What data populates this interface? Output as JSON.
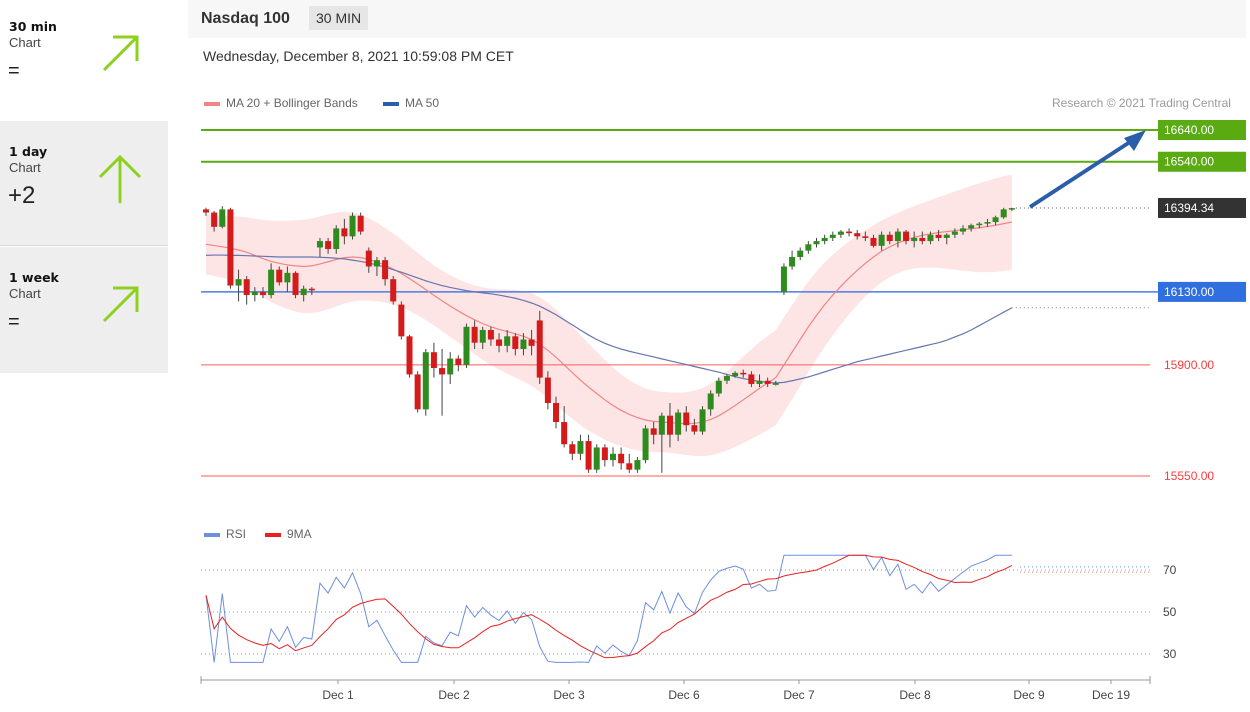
{
  "sidebar": {
    "items": [
      {
        "name": "30 min",
        "sub": "Chart",
        "score": "=",
        "arrow": "up-right-arrow-icon"
      },
      {
        "name": "1 day",
        "sub": "Chart",
        "score": "+2",
        "arrow": "up-arrow-icon"
      },
      {
        "name": "1 week",
        "sub": "Chart",
        "score": "=",
        "arrow": "up-right-arrow-icon"
      }
    ],
    "arrow_color": "#8dd11e"
  },
  "header": {
    "instrument": "Nasdaq 100",
    "timeframe": "30 MIN",
    "datetime": "Wednesday, December 8, 2021 10:59:08 PM CET",
    "credit": "Research © 2021 Trading Central"
  },
  "legend": {
    "ma20": "MA 20 + Bollinger Bands",
    "ma50": "MA 50",
    "rsi": "RSI",
    "rsi_ma": "9MA"
  },
  "levels": {
    "resistance": [
      "16640.00",
      "16540.00"
    ],
    "last": "16394.34",
    "pivot": "16130.00",
    "support": [
      "15900.00",
      "15550.00"
    ]
  },
  "rsi_ticks": [
    "70",
    "50",
    "30"
  ],
  "x_ticks": [
    "Dec 1",
    "Dec 2",
    "Dec 3",
    "Dec 6",
    "Dec 7",
    "Dec 8",
    "Dec 9",
    "Dec 19"
  ],
  "colors": {
    "bull": "#2e8b1e",
    "bear": "#d41a1a",
    "resistance": "#5aaa12",
    "support": "#ff5a5a",
    "pivot": "#4a7de0",
    "forecast": "#2a5ea8",
    "ma20": "#f08585",
    "ma50": "#6676b0",
    "band": "#fde0e0"
  },
  "chart_data": {
    "type": "candlestick",
    "x_unit": "30-minute bars",
    "candles": [
      [
        16390,
        16395,
        16370,
        16380
      ],
      [
        16380,
        16385,
        16320,
        16335
      ],
      [
        16335,
        16400,
        16330,
        16390
      ],
      [
        16390,
        16395,
        16140,
        16150
      ],
      [
        16150,
        16200,
        16100,
        16170
      ],
      [
        16170,
        16180,
        16090,
        16120
      ],
      [
        16120,
        16145,
        16100,
        16130
      ],
      [
        16130,
        16145,
        16110,
        16120
      ],
      [
        16120,
        16220,
        16110,
        16200
      ],
      [
        16200,
        16210,
        16150,
        16160
      ],
      [
        16160,
        16210,
        16130,
        16190
      ],
      [
        16190,
        16195,
        16110,
        16120
      ],
      [
        16120,
        16150,
        16100,
        16140
      ],
      [
        16140,
        16145,
        16120,
        16135
      ],
      [
        16270,
        16300,
        16240,
        16290
      ],
      [
        16290,
        16300,
        16250,
        16265
      ],
      [
        16265,
        16340,
        16250,
        16330
      ],
      [
        16330,
        16360,
        16280,
        16305
      ],
      [
        16305,
        16380,
        16295,
        16370
      ],
      [
        16370,
        16380,
        16310,
        16320
      ],
      [
        16260,
        16270,
        16190,
        16210
      ],
      [
        16210,
        16240,
        16180,
        16230
      ],
      [
        16230,
        16240,
        16150,
        16170
      ],
      [
        16170,
        16180,
        16090,
        16100
      ],
      [
        16090,
        16100,
        15980,
        15990
      ],
      [
        15990,
        15995,
        15860,
        15870
      ],
      [
        15870,
        15880,
        15750,
        15760
      ],
      [
        15760,
        15950,
        15740,
        15940
      ],
      [
        15940,
        15970,
        15860,
        15890
      ],
      [
        15890,
        15950,
        15740,
        15870
      ],
      [
        15870,
        15940,
        15840,
        15920
      ],
      [
        15920,
        15930,
        15880,
        15900
      ],
      [
        15900,
        16030,
        15890,
        16020
      ],
      [
        16020,
        16040,
        15950,
        15970
      ],
      [
        15970,
        16020,
        15950,
        16010
      ],
      [
        16010,
        16020,
        15960,
        15980
      ],
      [
        15980,
        16000,
        15940,
        15960
      ],
      [
        15960,
        16010,
        15940,
        15990
      ],
      [
        15990,
        16000,
        15930,
        15950
      ],
      [
        15950,
        16000,
        15930,
        15980
      ],
      [
        15980,
        16010,
        15930,
        15960
      ],
      [
        16040,
        16070,
        15840,
        15860
      ],
      [
        15860,
        15880,
        15760,
        15780
      ],
      [
        15780,
        15800,
        15700,
        15720
      ],
      [
        15720,
        15770,
        15640,
        15650
      ],
      [
        15650,
        15660,
        15600,
        15620
      ],
      [
        15620,
        15680,
        15600,
        15660
      ],
      [
        15660,
        15680,
        15560,
        15570
      ],
      [
        15570,
        15650,
        15560,
        15640
      ],
      [
        15640,
        15650,
        15580,
        15600
      ],
      [
        15600,
        15640,
        15580,
        15620
      ],
      [
        15620,
        15640,
        15570,
        15590
      ],
      [
        15590,
        15620,
        15560,
        15570
      ],
      [
        15570,
        15610,
        15560,
        15600
      ],
      [
        15600,
        15710,
        15590,
        15700
      ],
      [
        15700,
        15720,
        15650,
        15680
      ],
      [
        15680,
        15750,
        15560,
        15740
      ],
      [
        15740,
        15780,
        15640,
        15680
      ],
      [
        15680,
        15760,
        15660,
        15750
      ],
      [
        15750,
        15770,
        15690,
        15710
      ],
      [
        15710,
        15730,
        15680,
        15690
      ],
      [
        15690,
        15770,
        15680,
        15760
      ],
      [
        15760,
        15820,
        15740,
        15810
      ],
      [
        15810,
        15860,
        15800,
        15850
      ],
      [
        15850,
        15870,
        15840,
        15865
      ],
      [
        15865,
        15880,
        15860,
        15875
      ],
      [
        15875,
        15885,
        15860,
        15870
      ],
      [
        15870,
        15880,
        15830,
        15840
      ],
      [
        15840,
        15870,
        15830,
        15850
      ],
      [
        15850,
        15860,
        15830,
        15840
      ],
      [
        15840,
        15850,
        15835,
        15842
      ],
      [
        16130,
        16220,
        16120,
        16210
      ],
      [
        16210,
        16260,
        16200,
        16240
      ],
      [
        16240,
        16270,
        16230,
        16260
      ],
      [
        16260,
        16290,
        16250,
        16280
      ],
      [
        16280,
        16300,
        16270,
        16290
      ],
      [
        16290,
        16310,
        16280,
        16300
      ],
      [
        16300,
        16320,
        16290,
        16310
      ],
      [
        16310,
        16325,
        16300,
        16320
      ],
      [
        16320,
        16330,
        16305,
        16315
      ],
      [
        16315,
        16325,
        16295,
        16305
      ],
      [
        16305,
        16320,
        16290,
        16300
      ],
      [
        16300,
        16310,
        16270,
        16275
      ],
      [
        16275,
        16320,
        16260,
        16310
      ],
      [
        16310,
        16320,
        16280,
        16290
      ],
      [
        16290,
        16330,
        16270,
        16320
      ],
      [
        16320,
        16325,
        16280,
        16290
      ],
      [
        16290,
        16320,
        16270,
        16300
      ],
      [
        16300,
        16320,
        16280,
        16290
      ],
      [
        16290,
        16320,
        16280,
        16310
      ],
      [
        16310,
        16325,
        16290,
        16300
      ],
      [
        16300,
        16315,
        16280,
        16310
      ],
      [
        16310,
        16330,
        16300,
        16320
      ],
      [
        16320,
        16340,
        16310,
        16330
      ],
      [
        16330,
        16345,
        16320,
        16340
      ],
      [
        16340,
        16350,
        16330,
        16345
      ],
      [
        16345,
        16360,
        16335,
        16350
      ],
      [
        16350,
        16370,
        16340,
        16365
      ],
      [
        16365,
        16395,
        16360,
        16390
      ],
      [
        16390,
        16395,
        16385,
        16394
      ]
    ],
    "ma20": [
      16280,
      16276,
      16272,
      16268,
      16262,
      16255,
      16245,
      16235,
      16226,
      16220,
      16215,
      16212,
      16210,
      16212,
      16218,
      16225,
      16232,
      16238,
      16240,
      16238,
      16232,
      16224,
      16214,
      16202,
      16188,
      16172,
      16155,
      16137,
      16119,
      16102,
      16085,
      16070,
      16055,
      16042,
      16030,
      16020,
      16012,
      16005,
      15998,
      15990,
      15980,
      15965,
      15946,
      15924,
      15900,
      15876,
      15852,
      15830,
      15810,
      15790,
      15772,
      15757,
      15744,
      15734,
      15726,
      15722,
      15720,
      15718,
      15716,
      15715,
      15716,
      15720,
      15728,
      15740,
      15755,
      15772,
      15790,
      15808,
      15826,
      15843,
      15860,
      15900,
      15940,
      15980,
      16020,
      16056,
      16090,
      16120,
      16148,
      16174,
      16198,
      16220,
      16240,
      16258,
      16272,
      16284,
      16294,
      16302,
      16308,
      16313,
      16317,
      16320,
      16323,
      16326,
      16329,
      16332,
      16336,
      16340,
      16345,
      16350
    ],
    "ma50": [
      16245,
      16246,
      16246,
      16245,
      16245,
      16244,
      16243,
      16242,
      16241,
      16240,
      16240,
      16240,
      16240,
      16240,
      16239,
      16238,
      16236,
      16234,
      16230,
      16226,
      16221,
      16215,
      16208,
      16200,
      16192,
      16183,
      16174,
      16165,
      16157,
      16150,
      16144,
      16139,
      16134,
      16130,
      16127,
      16124,
      16120,
      16115,
      16110,
      16103,
      16095,
      16085,
      16072,
      16058,
      16042,
      16026,
      16010,
      15994,
      15980,
      15968,
      15958,
      15950,
      15943,
      15937,
      15931,
      15925,
      15919,
      15913,
      15907,
      15901,
      15895,
      15889,
      15883,
      15877,
      15870,
      15863,
      15857,
      15852,
      15848,
      15845,
      15843,
      15845,
      15850,
      15856,
      15862,
      15870,
      15878,
      15886,
      15894,
      15902,
      15910,
      15916,
      15922,
      15928,
      15934,
      15940,
      15946,
      15952,
      15958,
      15964,
      15970,
      15978,
      15988,
      15998,
      16010,
      16024,
      16038,
      16052,
      16066,
      16080
    ]
  }
}
